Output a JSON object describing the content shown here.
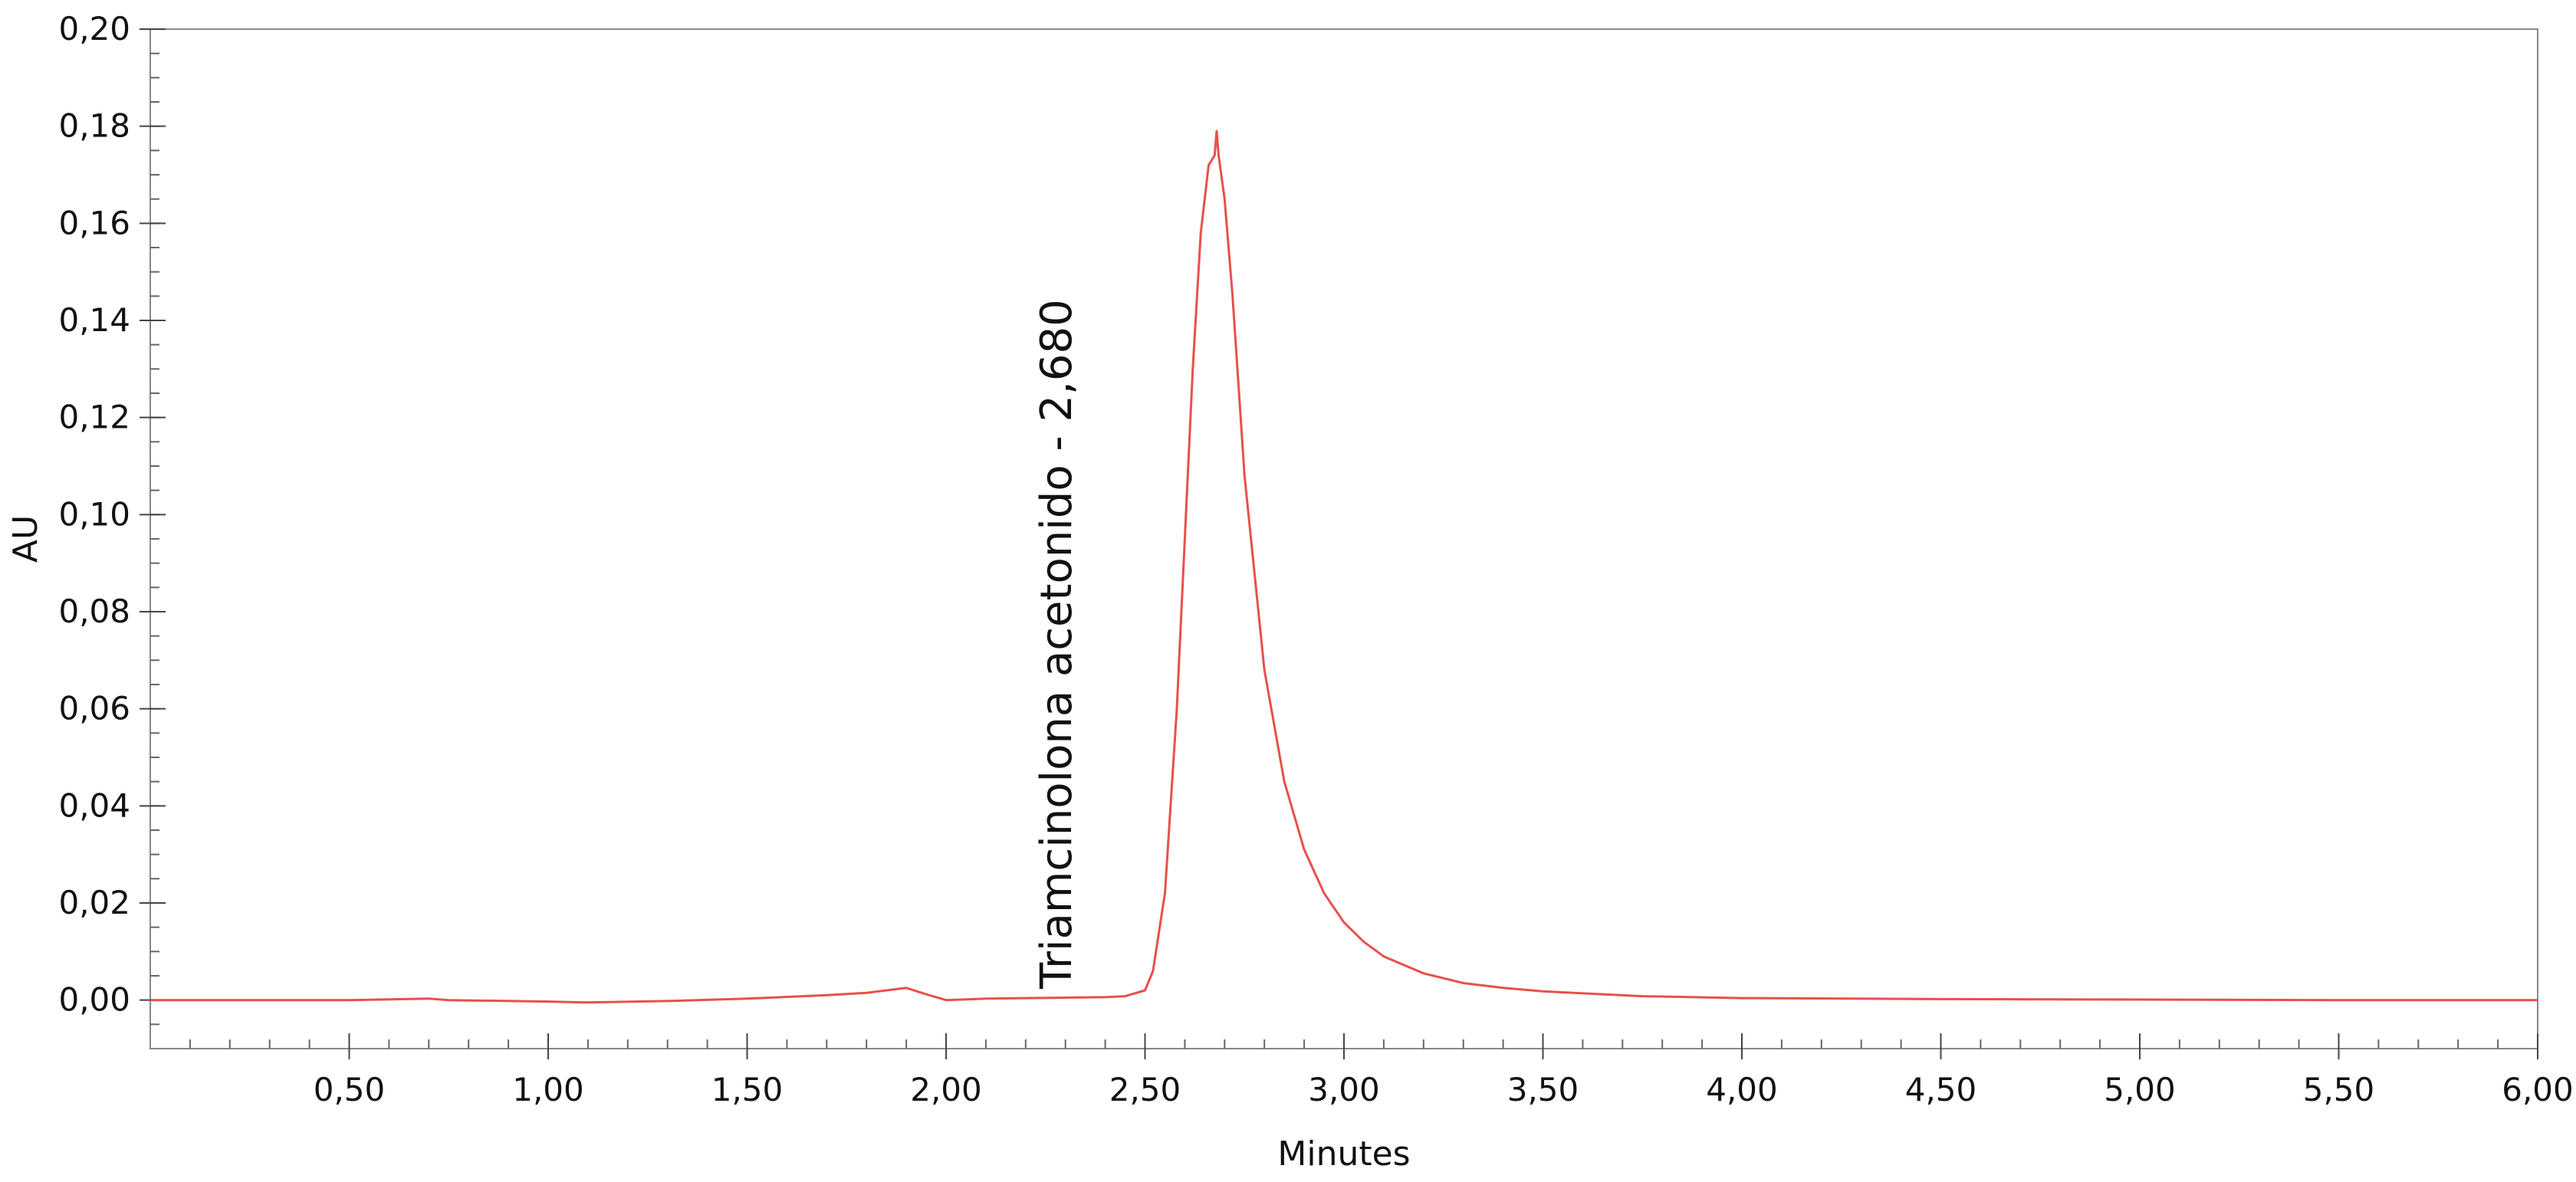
{
  "chart_data": {
    "type": "line",
    "xlabel": "Minutes",
    "ylabel": "AU",
    "xlim": [
      0,
      6.0
    ],
    "ylim": [
      -0.01,
      0.2
    ],
    "x_ticks": [
      0.5,
      1.0,
      1.5,
      2.0,
      2.5,
      3.0,
      3.5,
      4.0,
      4.5,
      5.0,
      5.5,
      6.0
    ],
    "x_tick_labels": [
      "0,50",
      "1,00",
      "1,50",
      "2,00",
      "2,50",
      "3,00",
      "3,50",
      "4,00",
      "4,50",
      "5,00",
      "5,50",
      "6,00"
    ],
    "y_ticks": [
      0.0,
      0.02,
      0.04,
      0.06,
      0.08,
      0.1,
      0.12,
      0.14,
      0.16,
      0.18,
      0.2
    ],
    "y_tick_labels": [
      "0,00",
      "0,02",
      "0,04",
      "0,06",
      "0,08",
      "0,10",
      "0,12",
      "0,14",
      "0,16",
      "0,18",
      "0,20"
    ],
    "x_minor_step": 0.1,
    "y_minor_step": 0.005,
    "grid": false,
    "series": [
      {
        "color": "#e8504a",
        "x": [
          0.0,
          0.5,
          0.7,
          0.75,
          1.0,
          1.1,
          1.3,
          1.5,
          1.7,
          1.8,
          1.85,
          1.9,
          1.95,
          2.0,
          2.1,
          2.2,
          2.3,
          2.4,
          2.45,
          2.5,
          2.52,
          2.55,
          2.58,
          2.6,
          2.62,
          2.64,
          2.66,
          2.675,
          2.68,
          2.685,
          2.7,
          2.72,
          2.75,
          2.8,
          2.85,
          2.9,
          2.95,
          3.0,
          3.05,
          3.1,
          3.2,
          3.3,
          3.4,
          3.5,
          3.75,
          4.0,
          4.5,
          5.0,
          5.5,
          6.0
        ],
        "y": [
          0.0,
          0.0,
          0.0003,
          0.0,
          -0.0003,
          -0.0005,
          -0.0002,
          0.0003,
          0.001,
          0.0015,
          0.002,
          0.0025,
          0.0012,
          0.0,
          0.0003,
          0.0004,
          0.0005,
          0.0006,
          0.0008,
          0.002,
          0.006,
          0.022,
          0.06,
          0.095,
          0.13,
          0.158,
          0.172,
          0.174,
          0.179,
          0.174,
          0.165,
          0.145,
          0.108,
          0.068,
          0.045,
          0.031,
          0.022,
          0.016,
          0.012,
          0.009,
          0.0055,
          0.0035,
          0.0025,
          0.0018,
          0.0008,
          0.0004,
          0.0002,
          0.0001,
          0.0,
          0.0
        ]
      }
    ],
    "annotations": [
      {
        "text": "Triamcinolona acetonido - 2,680",
        "x": 2.68
      }
    ]
  }
}
